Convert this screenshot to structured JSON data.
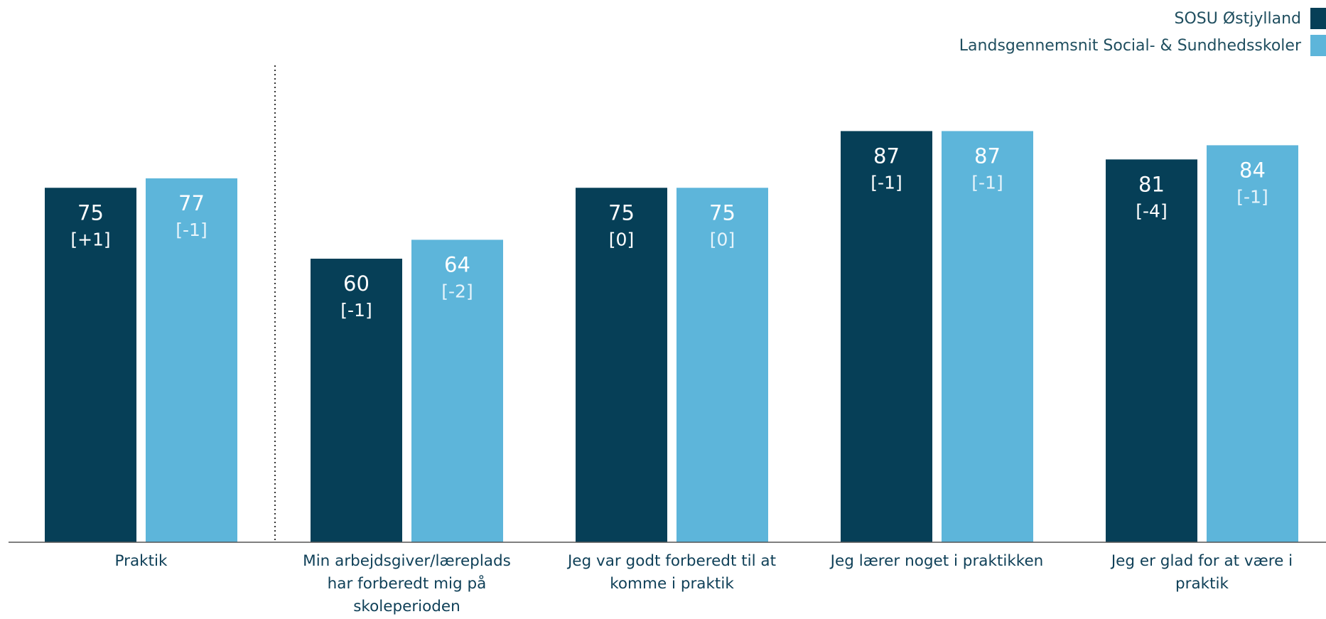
{
  "chart_data": {
    "type": "bar",
    "categories": [
      [
        "Praktik"
      ],
      [
        "Min arbejdsgiver/læreplads",
        "har forberedt mig på",
        "skoleperioden"
      ],
      [
        "Jeg var godt forberedt til at",
        "komme i praktik"
      ],
      [
        "Jeg lærer noget i praktikken"
      ],
      [
        "Jeg er glad for at være i",
        "praktik"
      ]
    ],
    "series": [
      {
        "name": "SOSU Østjylland",
        "color": "#063f57",
        "values": [
          75,
          60,
          75,
          87,
          81
        ],
        "changes": [
          "[+1]",
          "[-1]",
          "[0]",
          "[-1]",
          "[-4]"
        ]
      },
      {
        "name": "Landsgennemsnit Social- & Sundhedsskoler",
        "color": "#5db5da",
        "values": [
          77,
          64,
          75,
          87,
          84
        ],
        "changes": [
          "[-1]",
          "[-2]",
          "[0]",
          "[-1]",
          "[-1]"
        ]
      }
    ],
    "ylim": [
      0,
      100
    ],
    "legend_position": "top-right",
    "separator_after_first_category": true,
    "grid": false
  }
}
